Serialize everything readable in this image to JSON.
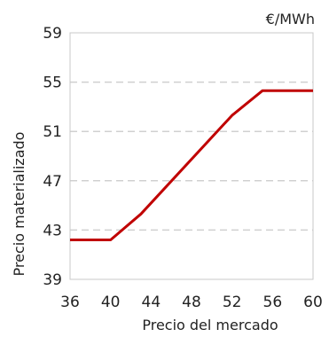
{
  "chart_data": {
    "type": "line",
    "title": "",
    "unit_label": "€/MWh",
    "xlabel": "Precio del mercado",
    "ylabel": "Precio materializado",
    "xlim": [
      36,
      60
    ],
    "ylim": [
      39,
      59
    ],
    "x_ticks": [
      "36",
      "40",
      "44",
      "48",
      "52",
      "56",
      "60"
    ],
    "y_ticks": [
      "39",
      "43",
      "47",
      "51",
      "55",
      "59"
    ],
    "grid": "horizontal-dashed",
    "series": [
      {
        "color": "#c00000",
        "points": [
          {
            "x": 36,
            "y": 42.2
          },
          {
            "x": 40,
            "y": 42.2
          },
          {
            "x": 43,
            "y": 44.3
          },
          {
            "x": 52,
            "y": 52.3
          },
          {
            "x": 55,
            "y": 54.3
          },
          {
            "x": 60,
            "y": 54.3
          }
        ]
      }
    ],
    "colors": {
      "line": "#c00000",
      "grid": "#d0d0d0",
      "frame": "#c8c8c8",
      "text": "#222222"
    }
  }
}
